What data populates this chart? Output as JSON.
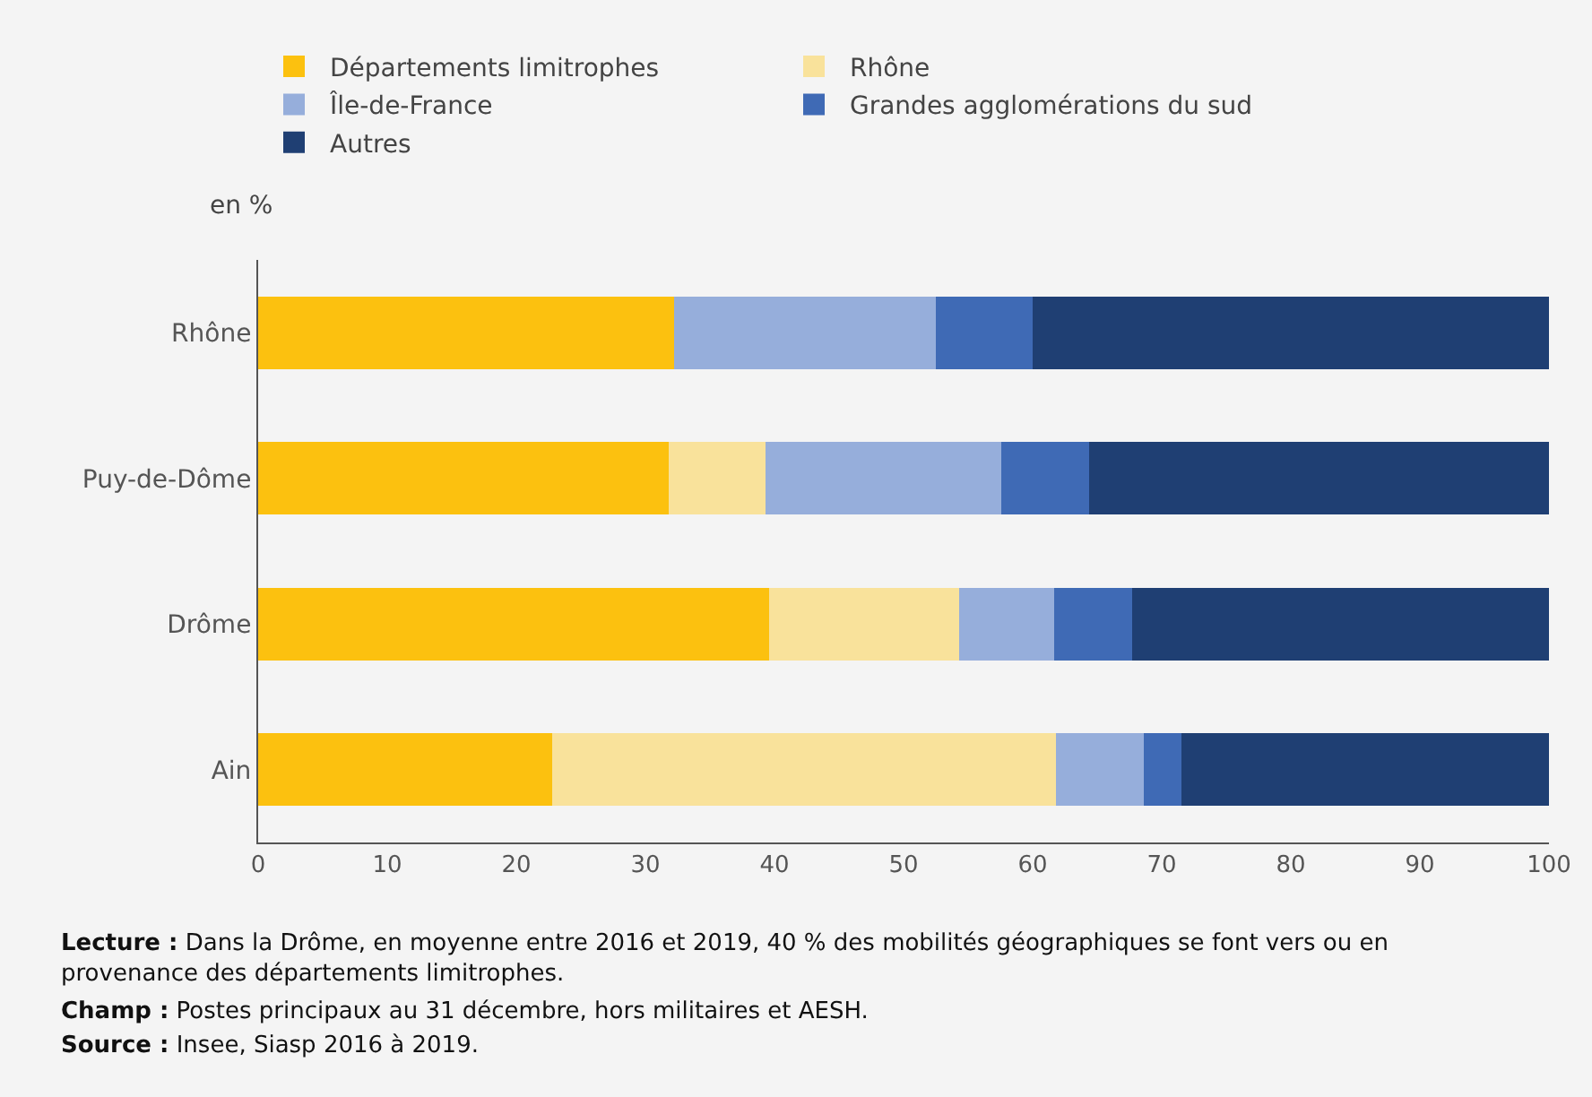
{
  "chart_data": {
    "type": "bar",
    "orientation": "horizontal",
    "stacked": true,
    "subtitle": "en %",
    "categories": [
      "Rhône",
      "Puy-de-Dôme",
      "Drôme",
      "Ain"
    ],
    "series": [
      {
        "name": "Départements limitrophes",
        "color": "#fcc10f",
        "values": [
          32.2,
          31.8,
          39.6,
          22.8
        ]
      },
      {
        "name": "Rhône",
        "color": "#f9e29b",
        "values": [
          0,
          7.5,
          14.7,
          39.0
        ]
      },
      {
        "name": "Île-de-France",
        "color": "#96aedb",
        "values": [
          20.3,
          18.3,
          7.4,
          6.8
        ]
      },
      {
        "name": "Grandes agglomérations du sud",
        "color": "#3f6ab5",
        "values": [
          7.5,
          6.8,
          6.0,
          2.9
        ]
      },
      {
        "name": "Autres",
        "color": "#1f3f73",
        "values": [
          40.0,
          35.6,
          32.3,
          28.5
        ]
      }
    ],
    "xlim": [
      0,
      100
    ],
    "xticks": [
      0,
      10,
      20,
      30,
      40,
      50,
      60,
      70,
      80,
      90,
      100
    ],
    "legend": "top",
    "grid": false,
    "annotations": [
      "Lecture : Dans la Drôme, en moyenne entre 2016 et 2019, 40 % des mobilités géographiques se font vers ou en provenance des départements limitrophes.",
      "Champ : Postes principaux au 31 décembre, hors militaires et AESH.",
      "Source : Insee, Siasp 2016 à 2019."
    ]
  }
}
